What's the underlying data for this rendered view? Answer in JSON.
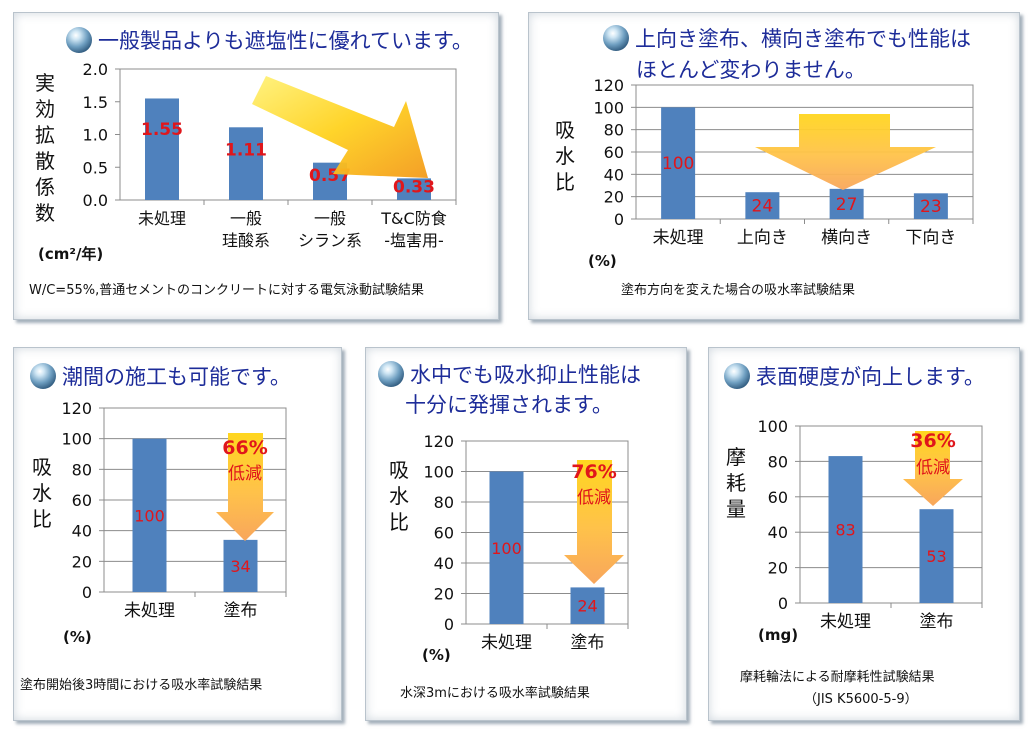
{
  "panels": [
    {
      "title": "一般製品よりも遮塩性に優れています。",
      "ylabel": "実効拡散係数",
      "unit": "(cm²/年)",
      "caption": "W/C=55%,普通セメントのコンクリートに対する電気泳動試験結果"
    },
    {
      "title_line1": "上向き塗布、横向き塗布でも性能は",
      "title_line2": "ほとんど変わりません。",
      "ylabel": "吸水比",
      "unit": "(%)",
      "caption": "塗布方向を変えた場合の吸水率試験結果"
    },
    {
      "title": "潮間の施工も可能です。",
      "ylabel": "吸水比",
      "unit": "(%)",
      "caption": "塗布開始後3時間における吸水率試験結果",
      "reduction_pct": "66%",
      "reduction_word": "低減"
    },
    {
      "title_line1": "水中でも吸水抑止性能は",
      "title_line2": "十分に発揮されます。",
      "ylabel": "吸水比",
      "unit": "(%)",
      "caption": "水深3mにおける吸水率試験結果",
      "reduction_pct": "76%",
      "reduction_word": "低減"
    },
    {
      "title": "表面硬度が向上します。",
      "ylabel": "摩耗量",
      "unit": "(mg)",
      "caption_line1": "摩耗輪法による耐摩耗性試験結果",
      "caption_line2": "（JIS K5600-5-9）",
      "reduction_pct": "36%",
      "reduction_word": "低減"
    }
  ],
  "chart_data": [
    {
      "type": "bar",
      "categories": [
        [
          "未処理"
        ],
        [
          "一般",
          "珪酸系"
        ],
        [
          "一般",
          "シラン系"
        ],
        [
          "T&C防食",
          "-塩害用-"
        ]
      ],
      "values": [
        1.55,
        1.11,
        0.57,
        0.33
      ],
      "value_labels": [
        "1.55",
        "1.11",
        "0.57",
        "0.33"
      ],
      "ylim": [
        0,
        2.0
      ],
      "yticks": [
        "0.0",
        "0.5",
        "1.0",
        "1.5",
        "2.0"
      ],
      "ytick_values": [
        0,
        0.5,
        1.0,
        1.5,
        2.0
      ],
      "gridlines": false
    },
    {
      "type": "bar",
      "categories": [
        [
          "未処理"
        ],
        [
          "上向き"
        ],
        [
          "横向き"
        ],
        [
          "下向き"
        ]
      ],
      "values": [
        100,
        24,
        27,
        23
      ],
      "value_labels": [
        "100",
        "24",
        "27",
        "23"
      ],
      "ylim": [
        0,
        120
      ],
      "yticks": [
        "0",
        "20",
        "40",
        "60",
        "80",
        "100",
        "120"
      ],
      "ytick_values": [
        0,
        20,
        40,
        60,
        80,
        100,
        120
      ],
      "gridlines": true
    },
    {
      "type": "bar",
      "categories": [
        [
          "未処理"
        ],
        [
          "塗布"
        ]
      ],
      "values": [
        100,
        34
      ],
      "value_labels": [
        "100",
        "34"
      ],
      "ylim": [
        0,
        120
      ],
      "yticks": [
        "0",
        "20",
        "40",
        "60",
        "80",
        "100",
        "120"
      ],
      "ytick_values": [
        0,
        20,
        40,
        60,
        80,
        100,
        120
      ],
      "gridlines": true
    },
    {
      "type": "bar",
      "categories": [
        [
          "未処理"
        ],
        [
          "塗布"
        ]
      ],
      "values": [
        100,
        24
      ],
      "value_labels": [
        "100",
        "24"
      ],
      "ylim": [
        0,
        120
      ],
      "yticks": [
        "0",
        "20",
        "40",
        "60",
        "80",
        "100",
        "120"
      ],
      "ytick_values": [
        0,
        20,
        40,
        60,
        80,
        100,
        120
      ],
      "gridlines": true
    },
    {
      "type": "bar",
      "categories": [
        [
          "未処理"
        ],
        [
          "塗布"
        ]
      ],
      "values": [
        83,
        53
      ],
      "value_labels": [
        "83",
        "53"
      ],
      "ylim": [
        0,
        100
      ],
      "yticks": [
        "0",
        "20",
        "40",
        "60",
        "80",
        "100"
      ],
      "ytick_values": [
        0,
        20,
        40,
        60,
        80,
        100
      ],
      "gridlines": true
    }
  ],
  "colors": {
    "bar": "#4f81bd",
    "value_label": "#e0161b",
    "title": "#1d2c99",
    "reduction_text": "#e0161b"
  }
}
